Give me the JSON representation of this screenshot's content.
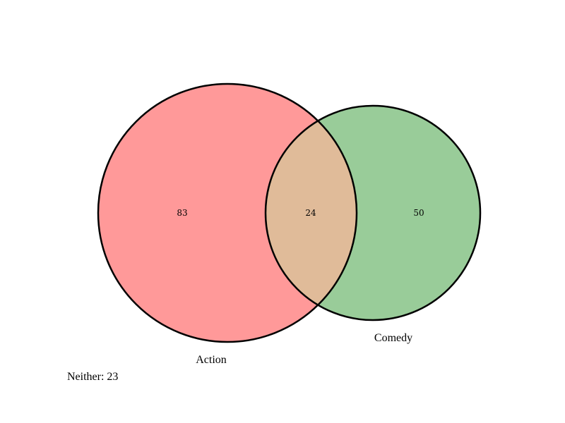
{
  "chart_data": {
    "type": "venn",
    "sets": [
      {
        "name": "Action",
        "only": 83,
        "color": "#ff9999"
      },
      {
        "name": "Comedy",
        "only": 50,
        "color": "#99cc99"
      }
    ],
    "intersection": {
      "value": 24,
      "color": "#e0bb99"
    },
    "neither": {
      "label": "Neither: 23",
      "value": 23
    },
    "outline_color": "#000000"
  }
}
